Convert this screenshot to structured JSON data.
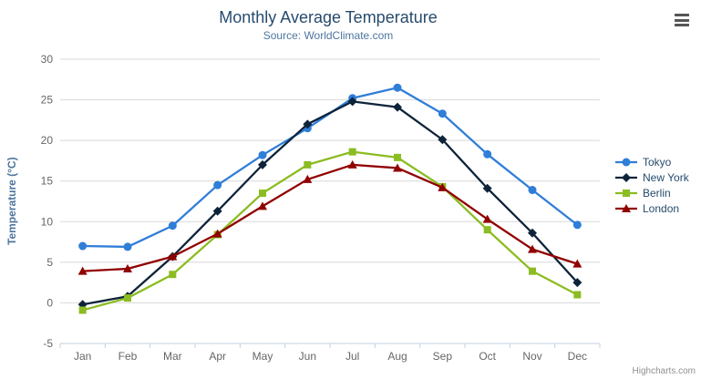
{
  "chart_data": {
    "type": "line",
    "title": "Monthly Average Temperature",
    "subtitle": "Source: WorldClimate.com",
    "xlabel": "",
    "ylabel": "Temperature (°C)",
    "ylim": [
      -5,
      30
    ],
    "ytick_interval": 5,
    "grid": true,
    "legend_position": "right",
    "categories": [
      "Jan",
      "Feb",
      "Mar",
      "Apr",
      "May",
      "Jun",
      "Jul",
      "Aug",
      "Sep",
      "Oct",
      "Nov",
      "Dec"
    ],
    "series": [
      {
        "name": "Tokyo",
        "color": "#2f7ed8",
        "marker": "circle",
        "values": [
          7.0,
          6.9,
          9.5,
          14.5,
          18.2,
          21.5,
          25.2,
          26.5,
          23.3,
          18.3,
          13.9,
          9.6
        ]
      },
      {
        "name": "New York",
        "color": "#0d233a",
        "marker": "diamond",
        "values": [
          -0.2,
          0.8,
          5.7,
          11.3,
          17.0,
          22.0,
          24.8,
          24.1,
          20.1,
          14.1,
          8.6,
          2.5
        ]
      },
      {
        "name": "Berlin",
        "color": "#8bbc21",
        "marker": "square",
        "values": [
          -0.9,
          0.6,
          3.5,
          8.4,
          13.5,
          17.0,
          18.6,
          17.9,
          14.3,
          9.0,
          3.9,
          1.0
        ]
      },
      {
        "name": "London",
        "color": "#910000",
        "marker": "triangle",
        "values": [
          3.9,
          4.2,
          5.7,
          8.5,
          11.9,
          15.2,
          17.0,
          16.6,
          14.2,
          10.3,
          6.6,
          4.8
        ]
      }
    ]
  },
  "icons": {
    "context_menu": "hamburger-icon"
  },
  "credits": {
    "label": "Highcharts.com"
  },
  "colors": {
    "title": "#274b6d",
    "subtitle": "#4d759e",
    "axis_title": "#4d759e",
    "axis_labels": "#666666",
    "grid": "#d8d8d8",
    "axis_line": "#c0d0e0",
    "legend_text": "#274b6d",
    "credits": "#909090"
  }
}
